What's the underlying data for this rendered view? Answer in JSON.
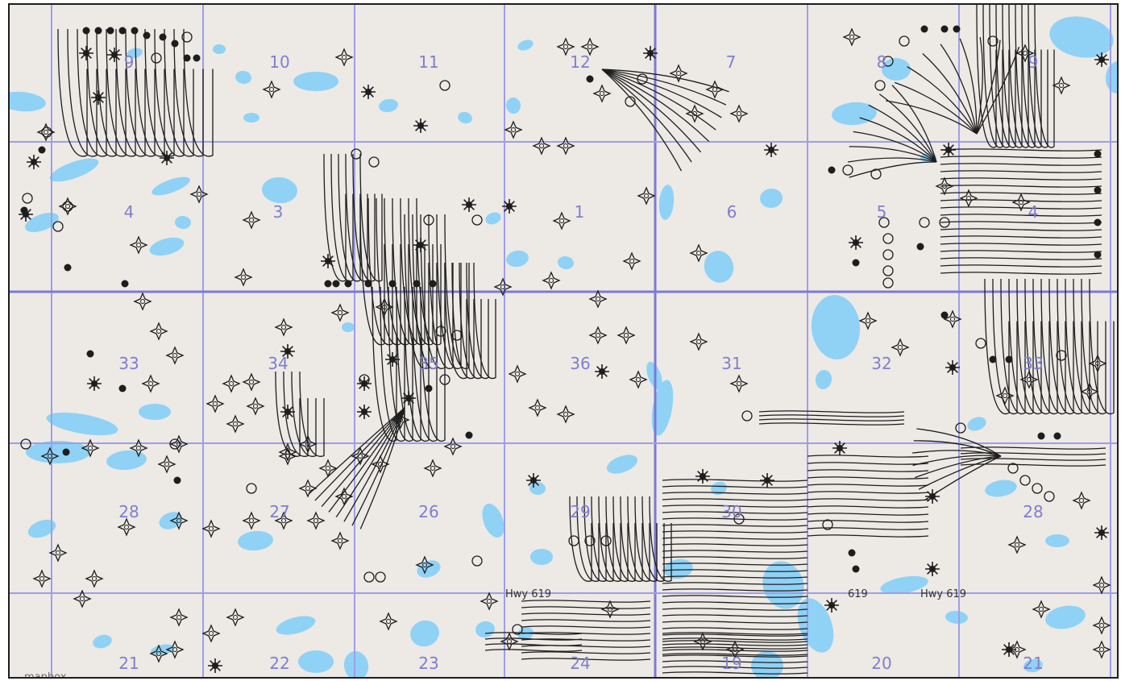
{
  "map": {
    "colors": {
      "land": "#ede9e5",
      "water": "#8fd2f5",
      "grid_line": "#9e9ee8",
      "township_line": "#7a7ad8",
      "section_label": "#7f7fcc",
      "well_symbol": "#1d1d1d"
    },
    "section_labels": [
      "9",
      "10",
      "11",
      "12",
      "7",
      "8",
      "9",
      "4",
      "3",
      "1",
      "6",
      "5",
      "4",
      "33",
      "34",
      "35",
      "36",
      "31",
      "32",
      "33",
      "28",
      "27",
      "26",
      "29",
      "30",
      "28",
      "21",
      "22",
      "23",
      "24",
      "19",
      "20",
      "21"
    ],
    "road_labels": [
      "Hwy 619",
      "619",
      "Hwy 619"
    ],
    "attribution": "mapbox",
    "icons": {
      "producing_well": "circle-dot-icon",
      "abandoned_well": "star-burst-icon",
      "cancelled_location": "open-circle-icon",
      "suspended_well": "cross-diamond-icon"
    }
  }
}
